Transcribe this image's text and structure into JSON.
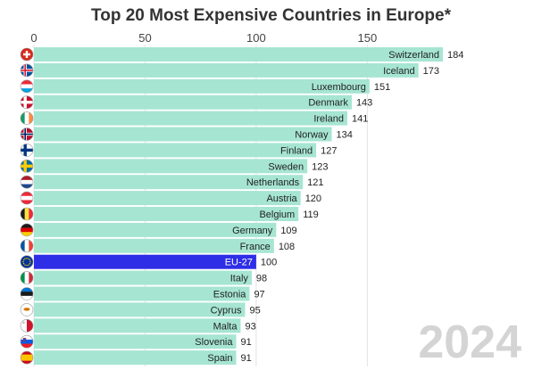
{
  "title": "Top 20 Most Expensive Countries in Europe*",
  "year": "2024",
  "colors": {
    "bar": "#a6e5d2",
    "highlight": "#2e2ee6",
    "grid": "#e3e3e3",
    "background": "#ffffff"
  },
  "chart_data": {
    "type": "bar",
    "orientation": "horizontal",
    "title": "Top 20 Most Expensive Countries in Europe*",
    "xlabel": "",
    "ylabel": "",
    "xlim": [
      0,
      184
    ],
    "x_ticks": [
      0,
      50,
      100,
      150
    ],
    "x_axis_position": "top",
    "grid": true,
    "legend": "none",
    "categories": [
      "Switzerland",
      "Iceland",
      "Luxembourg",
      "Denmark",
      "Ireland",
      "Norway",
      "Finland",
      "Sweden",
      "Netherlands",
      "Austria",
      "Belgium",
      "Germany",
      "France",
      "EU-27",
      "Italy",
      "Estonia",
      "Cyprus",
      "Malta",
      "Slovenia",
      "Spain"
    ],
    "values": [
      184,
      173,
      151,
      143,
      141,
      134,
      127,
      123,
      121,
      120,
      119,
      109,
      108,
      100,
      98,
      97,
      95,
      93,
      91,
      91
    ],
    "highlight_category": "EU-27",
    "flags": [
      "switzerland-flag",
      "iceland-flag",
      "luxembourg-flag",
      "denmark-flag",
      "ireland-flag",
      "norway-flag",
      "finland-flag",
      "sweden-flag",
      "netherlands-flag",
      "austria-flag",
      "belgium-flag",
      "germany-flag",
      "france-flag",
      "eu-flag",
      "italy-flag",
      "estonia-flag",
      "cyprus-flag",
      "malta-flag",
      "slovenia-flag",
      "spain-flag"
    ]
  }
}
